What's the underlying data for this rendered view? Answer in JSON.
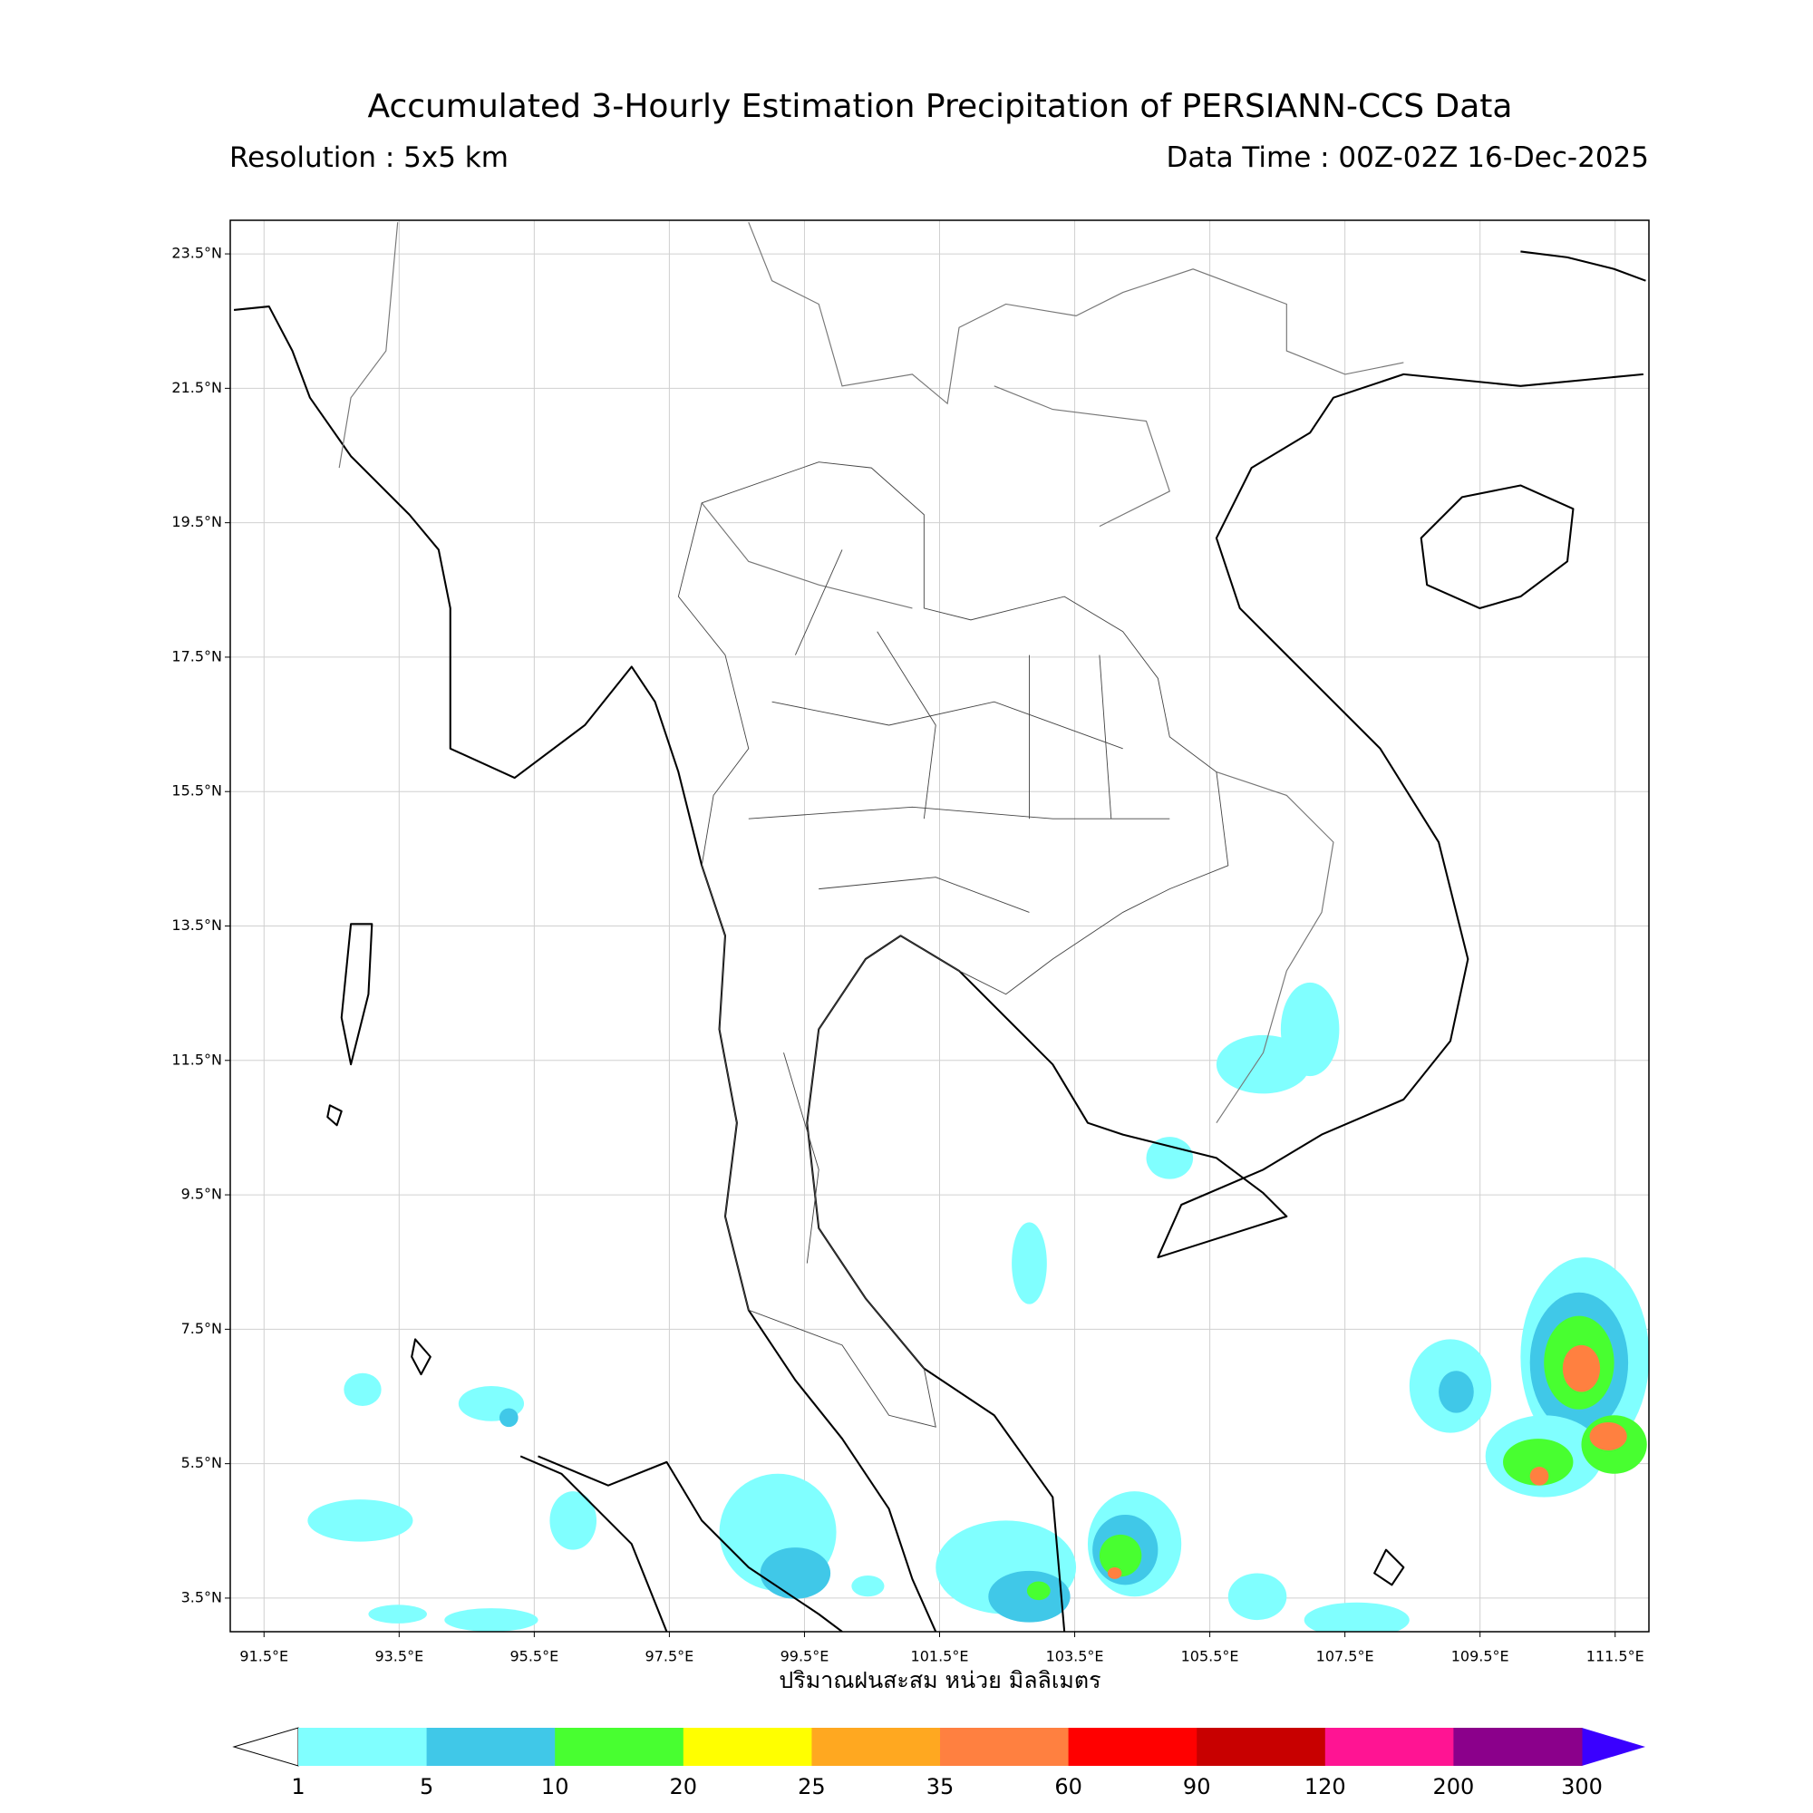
{
  "title": "Accumulated 3-Hourly Estimation Precipitation of PERSIANN-CCS Data",
  "subtitle_left": "Resolution : 5x5 km",
  "subtitle_right": "Data Time : 00Z-02Z 16-Dec-2025",
  "map": {
    "xlim": [
      91,
      112
    ],
    "ylim": [
      3,
      24
    ],
    "grid": true,
    "xticks": [
      {
        "value": 91.5,
        "label": "91.5°E"
      },
      {
        "value": 93.5,
        "label": "93.5°E"
      },
      {
        "value": 95.5,
        "label": "95.5°E"
      },
      {
        "value": 97.5,
        "label": "97.5°E"
      },
      {
        "value": 99.5,
        "label": "99.5°E"
      },
      {
        "value": 101.5,
        "label": "101.5°E"
      },
      {
        "value": 103.5,
        "label": "103.5°E"
      },
      {
        "value": 105.5,
        "label": "105.5°E"
      },
      {
        "value": 107.5,
        "label": "107.5°E"
      },
      {
        "value": 109.5,
        "label": "109.5°E"
      },
      {
        "value": 111.5,
        "label": "111.5°E"
      }
    ],
    "yticks": [
      {
        "value": 3.5,
        "label": "3.5°N"
      },
      {
        "value": 5.5,
        "label": "5.5°N"
      },
      {
        "value": 7.5,
        "label": "7.5°N"
      },
      {
        "value": 9.5,
        "label": "9.5°N"
      },
      {
        "value": 11.5,
        "label": "11.5°N"
      },
      {
        "value": 13.5,
        "label": "13.5°N"
      },
      {
        "value": 15.5,
        "label": "15.5°N"
      },
      {
        "value": 17.5,
        "label": "17.5°N"
      },
      {
        "value": 19.5,
        "label": "19.5°N"
      },
      {
        "value": 21.5,
        "label": "21.5°N"
      },
      {
        "value": 23.5,
        "label": "23.5°N"
      }
    ],
    "x_label": "ปริมาณฝนสะสม หน่วย มิลลิเมตร"
  },
  "colorbar": {
    "boundaries": [
      1,
      5,
      10,
      20,
      25,
      35,
      60,
      90,
      120,
      200,
      300
    ],
    "colors": [
      "#80ffff",
      "#40c8e8",
      "#48ff30",
      "#ffff00",
      "#ffa820",
      "#ff8040",
      "#ff0000",
      "#c80000",
      "#ff1493",
      "#8b008b"
    ],
    "under_color": "#ffffff",
    "over_color": "#3a00ff"
  }
}
